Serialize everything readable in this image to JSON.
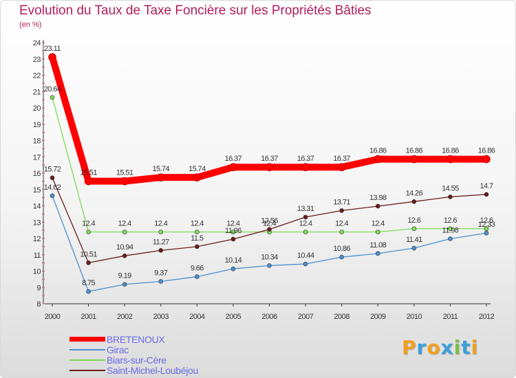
{
  "title": "Evolution du Taux de Taxe Foncière sur les Propriétés Bâties",
  "unit_label": "(en %)",
  "brand": {
    "letters": [
      "P",
      "r",
      "o",
      "x",
      "i",
      "t",
      "i"
    ],
    "colors": [
      "#f0a01e",
      "#3aa0d8",
      "#f0a01e",
      "#3aa0d8",
      "#7ac142",
      "#3aa0d8",
      "#f0a01e"
    ]
  },
  "chart_data": {
    "type": "line",
    "title": "Evolution du Taux de Taxe Foncière sur les Propriétés Bâties",
    "ylabel": "(en %)",
    "xlabel": "",
    "ylim": [
      8,
      24
    ],
    "yticks": [
      8,
      9,
      10,
      11,
      12,
      13,
      14,
      15,
      16,
      17,
      18,
      19,
      20,
      21,
      22,
      23,
      24
    ],
    "categories": [
      "2000",
      "2001",
      "2002",
      "2003",
      "2004",
      "2005",
      "2006",
      "2007",
      "2008",
      "2009",
      "2010",
      "2011",
      "2012"
    ],
    "series": [
      {
        "name": "BRETENOUX",
        "color": "#ff0000",
        "values": [
          23.11,
          15.51,
          15.51,
          15.74,
          15.74,
          16.37,
          16.37,
          16.37,
          16.37,
          16.86,
          16.86,
          16.86,
          16.86
        ],
        "labels": [
          "23.11",
          "15.51",
          "15.51",
          "15.74",
          "15.74",
          "16.37",
          "16.37",
          "16.37",
          "16.37",
          "16.86",
          "16.86",
          "16.86",
          "16.86"
        ]
      },
      {
        "name": "Girac",
        "color": "#4a90d0",
        "values": [
          14.62,
          8.75,
          9.19,
          9.37,
          9.66,
          10.14,
          10.34,
          10.44,
          10.86,
          11.08,
          11.41,
          11.98,
          12.33
        ],
        "labels": [
          "14.62",
          "8.75",
          "9.19",
          "9.37",
          "9.66",
          "10.14",
          "10.34",
          "10.44",
          "10.86",
          "11.08",
          "11.41",
          "11.98",
          "12.33"
        ]
      },
      {
        "name": "Biars-sur-Cère",
        "color": "#7ed957",
        "values": [
          20.64,
          12.4,
          12.4,
          12.4,
          12.4,
          12.4,
          12.4,
          12.4,
          12.4,
          12.4,
          12.6,
          12.6,
          12.6
        ],
        "labels": [
          "20.64",
          "12.4",
          "12.4",
          "12.4",
          "12.4",
          "12.4",
          "12.4",
          "12.4",
          "12.4",
          "12.4",
          "12.6",
          "12.6",
          "12.6"
        ]
      },
      {
        "name": "Saint-Michel-Loubéjou",
        "color": "#6b1a1a",
        "values": [
          15.72,
          10.51,
          10.94,
          11.27,
          11.5,
          11.96,
          12.56,
          13.31,
          13.71,
          13.98,
          14.26,
          14.55,
          14.7
        ],
        "labels": [
          "15.72",
          "10.51",
          "10.94",
          "11.27",
          "11.5",
          "11.96",
          "12.56",
          "13.31",
          "13.71",
          "13.98",
          "14.26",
          "14.55",
          "14.7"
        ]
      }
    ]
  }
}
